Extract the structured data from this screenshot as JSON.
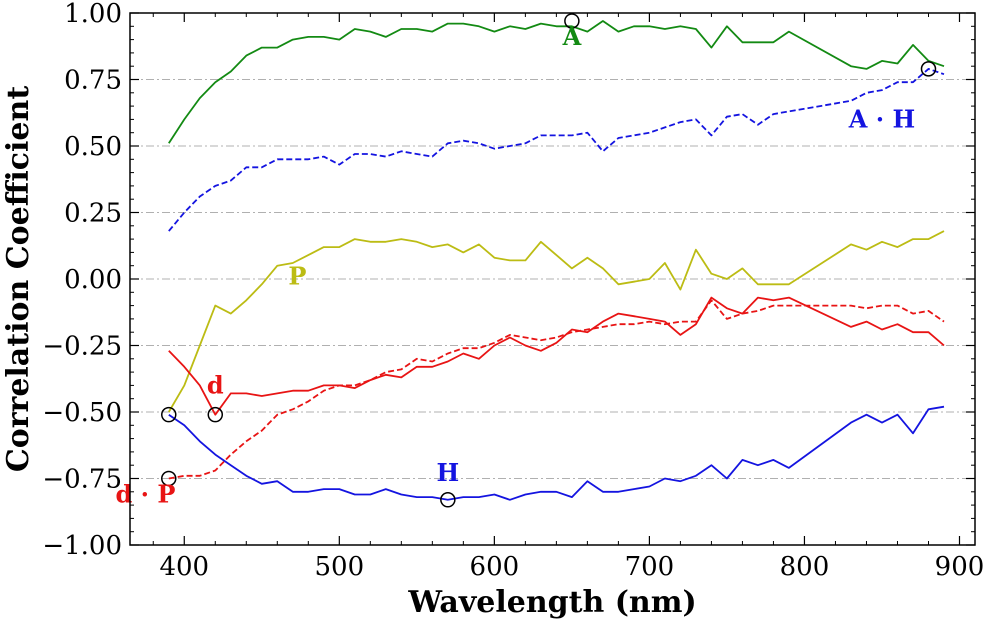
{
  "chart_data": {
    "type": "line",
    "xlabel": "Wavelength (nm)",
    "ylabel": "Correlation Coefficient",
    "xlim": [
      365,
      910
    ],
    "ylim": [
      -1.0,
      1.0
    ],
    "xticks": [
      400,
      500,
      600,
      700,
      800,
      900
    ],
    "xtick_labels": [
      "400",
      "500",
      "600",
      "700",
      "800",
      "900"
    ],
    "yticks": [
      -1.0,
      -0.75,
      -0.5,
      -0.25,
      0.0,
      0.25,
      0.5,
      0.75,
      1.0
    ],
    "ytick_labels": [
      "−1.00",
      "−0.75",
      "−0.50",
      "−0.25",
      "0.00",
      "0.25",
      "0.50",
      "0.75",
      "1.00"
    ],
    "grid": {
      "axis": "y",
      "style": "dash-dot",
      "color": "#b0b0b0"
    },
    "series": [
      {
        "name": "A",
        "label": "A",
        "color": "#138a13",
        "dash": "solid",
        "x": [
          390,
          400,
          410,
          420,
          430,
          440,
          450,
          460,
          470,
          480,
          490,
          500,
          510,
          520,
          530,
          540,
          550,
          560,
          570,
          580,
          590,
          600,
          610,
          620,
          630,
          640,
          650,
          660,
          670,
          680,
          690,
          700,
          710,
          720,
          730,
          740,
          750,
          760,
          770,
          780,
          790,
          830,
          840,
          850,
          860,
          870,
          880,
          890
        ],
        "y": [
          0.51,
          0.6,
          0.68,
          0.74,
          0.78,
          0.84,
          0.87,
          0.87,
          0.9,
          0.91,
          0.91,
          0.9,
          0.94,
          0.93,
          0.91,
          0.94,
          0.94,
          0.93,
          0.96,
          0.96,
          0.95,
          0.93,
          0.95,
          0.94,
          0.96,
          0.95,
          0.95,
          0.93,
          0.97,
          0.93,
          0.95,
          0.95,
          0.94,
          0.95,
          0.94,
          0.87,
          0.95,
          0.89,
          0.89,
          0.89,
          0.93,
          0.8,
          0.79,
          0.82,
          0.81,
          0.88,
          0.82,
          0.8
        ],
        "label_pos": [
          650,
          0.88
        ],
        "marker": [
          650,
          0.97
        ]
      },
      {
        "name": "A · H",
        "label": "A · H",
        "color": "#1414e0",
        "dash": "dashed",
        "x": [
          390,
          400,
          410,
          420,
          430,
          440,
          450,
          460,
          470,
          480,
          490,
          500,
          510,
          520,
          530,
          540,
          550,
          560,
          570,
          580,
          590,
          600,
          610,
          620,
          630,
          640,
          650,
          660,
          670,
          680,
          690,
          700,
          710,
          720,
          730,
          740,
          750,
          760,
          770,
          780,
          790,
          830,
          840,
          850,
          860,
          870,
          880,
          890
        ],
        "y": [
          0.18,
          0.25,
          0.31,
          0.35,
          0.37,
          0.42,
          0.42,
          0.45,
          0.45,
          0.45,
          0.46,
          0.43,
          0.47,
          0.47,
          0.46,
          0.48,
          0.47,
          0.46,
          0.51,
          0.52,
          0.51,
          0.49,
          0.5,
          0.51,
          0.54,
          0.54,
          0.54,
          0.55,
          0.48,
          0.53,
          0.54,
          0.55,
          0.57,
          0.59,
          0.6,
          0.54,
          0.61,
          0.62,
          0.58,
          0.62,
          0.63,
          0.67,
          0.7,
          0.71,
          0.74,
          0.74,
          0.79,
          0.77
        ],
        "label_pos": [
          850,
          0.57
        ],
        "marker": [
          880,
          0.79
        ]
      },
      {
        "name": "P",
        "label": "P",
        "color": "#bcbc14",
        "dash": "solid",
        "x": [
          390,
          400,
          410,
          420,
          430,
          440,
          450,
          460,
          470,
          480,
          490,
          500,
          510,
          520,
          530,
          540,
          550,
          560,
          570,
          580,
          590,
          600,
          610,
          620,
          630,
          640,
          650,
          660,
          670,
          680,
          690,
          700,
          710,
          720,
          730,
          740,
          750,
          760,
          770,
          780,
          790,
          830,
          840,
          850,
          860,
          870,
          880,
          890
        ],
        "y": [
          -0.5,
          -0.4,
          -0.25,
          -0.1,
          -0.13,
          -0.08,
          -0.02,
          0.05,
          0.06,
          0.09,
          0.12,
          0.12,
          0.15,
          0.14,
          0.14,
          0.15,
          0.14,
          0.12,
          0.13,
          0.1,
          0.13,
          0.08,
          0.07,
          0.07,
          0.14,
          0.09,
          0.04,
          0.08,
          0.04,
          -0.02,
          -0.01,
          0.0,
          0.06,
          -0.04,
          0.11,
          0.02,
          0.0,
          0.04,
          -0.02,
          -0.02,
          -0.02,
          0.13,
          0.11,
          0.14,
          0.12,
          0.15,
          0.15,
          0.18
        ],
        "label_pos": [
          473,
          -0.02
        ]
      },
      {
        "name": "d",
        "label": "d",
        "color": "#e81414",
        "dash": "solid",
        "x": [
          390,
          400,
          410,
          420,
          430,
          440,
          450,
          460,
          470,
          480,
          490,
          500,
          510,
          520,
          530,
          540,
          550,
          560,
          570,
          580,
          590,
          600,
          610,
          620,
          630,
          640,
          650,
          660,
          670,
          680,
          690,
          700,
          710,
          720,
          730,
          740,
          750,
          760,
          770,
          780,
          790,
          830,
          840,
          850,
          860,
          870,
          880,
          890
        ],
        "y": [
          -0.27,
          -0.33,
          -0.4,
          -0.51,
          -0.43,
          -0.43,
          -0.44,
          -0.43,
          -0.42,
          -0.42,
          -0.4,
          -0.4,
          -0.41,
          -0.38,
          -0.36,
          -0.37,
          -0.33,
          -0.33,
          -0.31,
          -0.28,
          -0.3,
          -0.25,
          -0.22,
          -0.25,
          -0.27,
          -0.24,
          -0.19,
          -0.2,
          -0.16,
          -0.13,
          -0.14,
          -0.15,
          -0.16,
          -0.21,
          -0.17,
          -0.07,
          -0.11,
          -0.13,
          -0.07,
          -0.08,
          -0.07,
          -0.18,
          -0.16,
          -0.19,
          -0.17,
          -0.2,
          -0.2,
          -0.25
        ],
        "label_pos": [
          420,
          -0.43
        ],
        "marker": [
          420,
          -0.51
        ]
      },
      {
        "name": "d · P",
        "label": "d · P",
        "color": "#e81414",
        "dash": "dashed",
        "x": [
          390,
          400,
          410,
          420,
          430,
          440,
          450,
          460,
          470,
          480,
          490,
          500,
          510,
          520,
          530,
          540,
          550,
          560,
          570,
          580,
          590,
          600,
          610,
          620,
          630,
          640,
          650,
          660,
          670,
          680,
          690,
          700,
          710,
          720,
          730,
          740,
          750,
          760,
          770,
          780,
          790,
          830,
          840,
          850,
          860,
          870,
          880,
          890
        ],
        "y": [
          -0.75,
          -0.74,
          -0.74,
          -0.72,
          -0.66,
          -0.61,
          -0.57,
          -0.51,
          -0.49,
          -0.46,
          -0.42,
          -0.4,
          -0.4,
          -0.38,
          -0.35,
          -0.34,
          -0.3,
          -0.31,
          -0.28,
          -0.26,
          -0.26,
          -0.24,
          -0.21,
          -0.22,
          -0.23,
          -0.22,
          -0.2,
          -0.19,
          -0.18,
          -0.17,
          -0.17,
          -0.16,
          -0.17,
          -0.16,
          -0.16,
          -0.08,
          -0.15,
          -0.13,
          -0.12,
          -0.1,
          -0.1,
          -0.1,
          -0.11,
          -0.1,
          -0.1,
          -0.13,
          -0.12,
          -0.16
        ],
        "label_pos": [
          375,
          -0.84
        ],
        "marker": [
          390,
          -0.75
        ]
      },
      {
        "name": "H",
        "label": "H",
        "color": "#1414e0",
        "dash": "solid",
        "x": [
          390,
          400,
          410,
          420,
          430,
          440,
          450,
          460,
          470,
          480,
          490,
          500,
          510,
          520,
          530,
          540,
          550,
          560,
          570,
          580,
          590,
          600,
          610,
          620,
          630,
          640,
          650,
          660,
          670,
          680,
          690,
          700,
          710,
          720,
          730,
          740,
          750,
          760,
          770,
          780,
          790,
          830,
          840,
          850,
          860,
          870,
          880,
          890
        ],
        "y": [
          -0.51,
          -0.55,
          -0.61,
          -0.66,
          -0.7,
          -0.74,
          -0.77,
          -0.76,
          -0.8,
          -0.8,
          -0.79,
          -0.79,
          -0.81,
          -0.81,
          -0.79,
          -0.81,
          -0.82,
          -0.82,
          -0.83,
          -0.82,
          -0.82,
          -0.81,
          -0.83,
          -0.81,
          -0.8,
          -0.8,
          -0.82,
          -0.76,
          -0.8,
          -0.8,
          -0.79,
          -0.78,
          -0.75,
          -0.76,
          -0.74,
          -0.7,
          -0.75,
          -0.68,
          -0.7,
          -0.68,
          -0.71,
          -0.54,
          -0.51,
          -0.54,
          -0.51,
          -0.58,
          -0.49,
          -0.48
        ],
        "label_pos": [
          570,
          -0.76
        ],
        "marker": [
          570,
          -0.83
        ]
      }
    ],
    "extra_markers": [
      [
        390,
        -0.51
      ]
    ]
  }
}
